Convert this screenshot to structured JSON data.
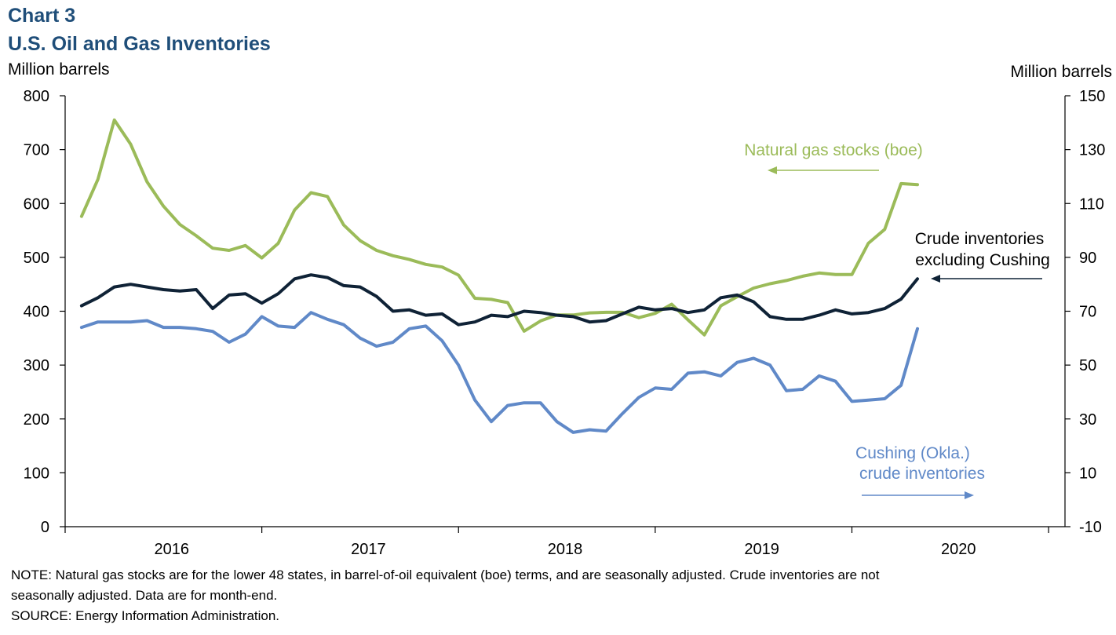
{
  "header": {
    "chart_number": "Chart 3",
    "title": "U.S. Oil and Gas Inventories"
  },
  "axes": {
    "left_unit": "Million barrels",
    "right_unit": "Million barrels"
  },
  "colors": {
    "gas": "#9bbb59",
    "crude_ex": "#0f2236",
    "cushing": "#6089c8",
    "title": "#1f4e79"
  },
  "chart_data": {
    "type": "line",
    "title": "U.S. Oil and Gas Inventories",
    "x_start": "2016-01",
    "x_labels": [
      "2016",
      "2017",
      "2018",
      "2019",
      "2020"
    ],
    "xlim": [
      "2015-12",
      "2020-12"
    ],
    "left_axis": {
      "label": "Million barrels",
      "ylim": [
        0,
        800
      ],
      "ticks": [
        0,
        100,
        200,
        300,
        400,
        500,
        600,
        700,
        800
      ]
    },
    "right_axis": {
      "label": "Million barrels",
      "ylim": [
        -10,
        150
      ],
      "ticks": [
        -10,
        10,
        30,
        50,
        70,
        90,
        110,
        130,
        150
      ]
    },
    "series": [
      {
        "name": "Natural gas stocks (boe)",
        "axis": "left",
        "values": [
          576,
          645,
          755,
          710,
          640,
          595,
          561,
          540,
          517,
          513,
          522,
          499,
          526,
          588,
          620,
          613,
          560,
          531,
          513,
          503,
          496,
          487,
          482,
          467,
          424,
          422,
          416,
          363,
          382,
          393,
          393,
          397,
          398,
          398,
          388,
          396,
          413,
          384,
          356,
          410,
          427,
          443,
          451,
          457,
          465,
          471,
          468,
          468,
          526,
          552,
          637,
          635
        ]
      },
      {
        "name": "Crude inventories excluding Cushing",
        "axis": "right",
        "values": [
          72,
          75,
          79,
          80,
          79,
          78,
          77.5,
          78,
          71,
          76,
          76.5,
          73,
          76.5,
          82,
          83.5,
          82.5,
          79.5,
          79,
          75.5,
          70,
          70.5,
          68.5,
          69,
          65,
          66,
          68.5,
          68,
          70,
          69.5,
          68.5,
          68,
          66,
          66.5,
          69,
          71.5,
          70.5,
          71,
          69.5,
          70.5,
          75,
          76,
          73.5,
          68,
          67,
          67,
          68.5,
          70.5,
          69,
          69.5,
          71,
          74.5,
          82
        ]
      },
      {
        "name": "Cushing (Okla.) crude inventories",
        "axis": "right",
        "values": [
          64,
          66,
          66,
          66,
          66.5,
          64,
          64,
          63.5,
          62.5,
          58.5,
          61.5,
          68,
          64.5,
          64,
          69.5,
          67,
          65,
          60,
          57,
          58.5,
          63.5,
          64.5,
          59,
          50,
          37,
          29,
          35,
          36,
          36,
          29,
          25,
          26,
          25.5,
          32,
          38,
          41.5,
          41,
          47,
          47.5,
          46,
          51,
          52.5,
          50,
          40.5,
          41,
          46,
          44,
          36.5,
          37,
          37.5,
          42.5,
          63.5
        ]
      }
    ],
    "annotations": [
      {
        "text": "Natural gas stocks (boe)",
        "arrow": "points to left axis"
      },
      {
        "text": "Crude inventories excluding Cushing",
        "arrow": "points to series end"
      },
      {
        "text": "Cushing (Okla.) crude inventories",
        "arrow": "points to right axis"
      }
    ]
  },
  "annotations": {
    "gas_label": "Natural gas stocks (boe)",
    "crude_line1": "Crude inventories",
    "crude_line2": "excluding Cushing",
    "cushing_line1": "Cushing (Okla.)",
    "cushing_line2": "crude inventories"
  },
  "footer": {
    "note_line1": "NOTE: Natural gas stocks are for the lower 48 states, in barrel-of-oil equivalent  (boe) terms, and are seasonally adjusted. Crude inventories are not",
    "note_line2": "seasonally adjusted. Data are for month-end.",
    "source": "SOURCE:  Energy Information Administration."
  }
}
